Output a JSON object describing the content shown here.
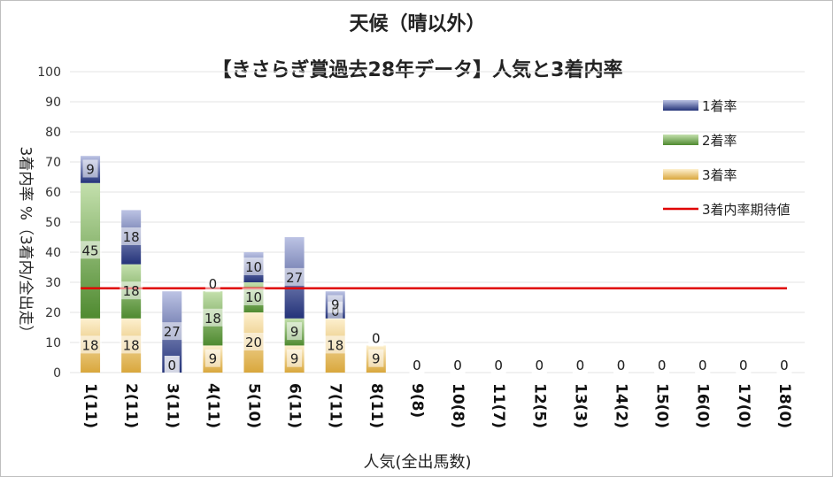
{
  "chart_data": {
    "type": "bar",
    "stacked": true,
    "title": "天候（晴以外）",
    "subtitle": "【きさらぎ賞過去28年データ】人気と3着内率",
    "xlabel": "人気(全出馬数)",
    "ylabel": "3着内率 %（3着内/全出走）",
    "ylim": [
      0,
      100
    ],
    "yticks": [
      "0",
      "10",
      "20",
      "30",
      "40",
      "50",
      "60",
      "70",
      "80",
      "90",
      "100"
    ],
    "grid": true,
    "legend_position": "right",
    "categories": [
      "1(11)",
      "2(11)",
      "3(11)",
      "4(11)",
      "5(10)",
      "6(11)",
      "7(11)",
      "8(11)",
      "9(8)",
      "10(8)",
      "11(7)",
      "12(5)",
      "13(3)",
      "14(2)",
      "15(0)",
      "16(0)",
      "17(0)",
      "18(0)"
    ],
    "series": [
      {
        "name": "3着率",
        "color": "#e8b64a",
        "values": [
          18,
          18,
          0,
          9,
          20,
          9,
          18,
          9,
          0,
          0,
          0,
          0,
          0,
          0,
          0,
          0,
          0,
          0
        ]
      },
      {
        "name": "2着率",
        "color": "#5d9a3c",
        "values": [
          45,
          18,
          0,
          18,
          10,
          9,
          0,
          0,
          0,
          0,
          0,
          0,
          0,
          0,
          0,
          0,
          0,
          0
        ]
      },
      {
        "name": "1着率",
        "color": "#2e3f8f",
        "values": [
          9,
          18,
          27,
          0,
          10,
          27,
          9,
          0,
          0,
          0,
          0,
          0,
          0,
          0,
          0,
          0,
          0,
          0
        ]
      }
    ],
    "reference_line": {
      "name": "3着内率期待値",
      "value": 28,
      "color": "#e00000"
    },
    "legend": [
      "1着率",
      "2着率",
      "3着率",
      "3着内率期待値"
    ]
  }
}
